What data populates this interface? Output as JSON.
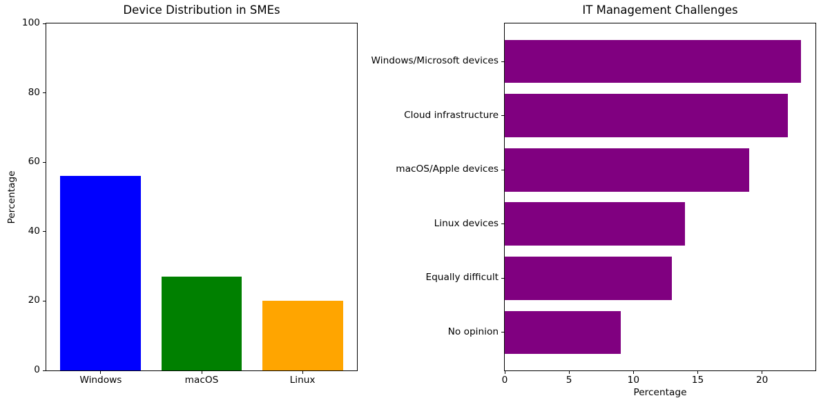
{
  "figure": {
    "background": "#ffffff",
    "text_color": "#000000"
  },
  "chart_data": [
    {
      "type": "bar",
      "title": "Device Distribution in SMEs",
      "categories": [
        "Windows",
        "macOS",
        "Linux"
      ],
      "values": [
        56,
        27,
        20
      ],
      "colors": [
        "#0000ff",
        "#008000",
        "#ffa500"
      ],
      "xlabel": "",
      "ylabel": "Percentage",
      "ylim": [
        0,
        100
      ],
      "yticks": [
        0,
        20,
        40,
        60,
        80,
        100
      ],
      "grid": false,
      "legend": "none"
    },
    {
      "type": "bar-horizontal",
      "title": "IT Management Challenges",
      "categories": [
        "Windows/Microsoft devices",
        "Cloud infrastructure",
        "macOS/Apple devices",
        "Linux devices",
        "Equally difficult",
        "No opinion"
      ],
      "values": [
        23,
        22,
        19,
        14,
        13,
        9
      ],
      "bar_color": "#800080",
      "xlabel": "Percentage",
      "xlim": [
        0,
        24.15
      ],
      "xticks": [
        0,
        5,
        10,
        15,
        20
      ],
      "grid": false,
      "legend": "none"
    }
  ]
}
